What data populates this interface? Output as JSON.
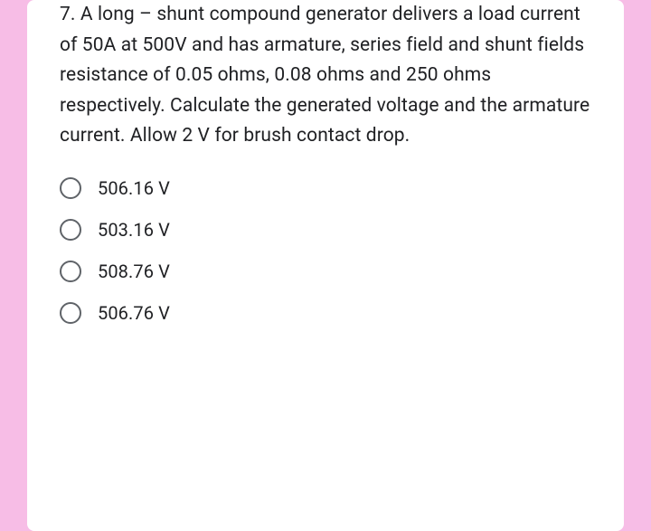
{
  "card": {
    "background_color": "#ffffff",
    "page_background_color": "#f7bde6",
    "text_color": "#202124",
    "radio_border_color": "#5f6368"
  },
  "question": {
    "number": "7.",
    "text": "7. A long – shunt compound generator delivers a load current of 50A at 500V and has armature, series field and shunt fields resistance of 0.05 ohms, 0.08 ohms and 250 ohms respectively. Calculate the generated voltage and the armature current. Allow 2 V for brush contact drop."
  },
  "options": [
    {
      "label": "506.16 V",
      "selected": false
    },
    {
      "label": "503.16 V",
      "selected": false
    },
    {
      "label": "508.76 V",
      "selected": false
    },
    {
      "label": "506.76 V",
      "selected": false
    }
  ]
}
